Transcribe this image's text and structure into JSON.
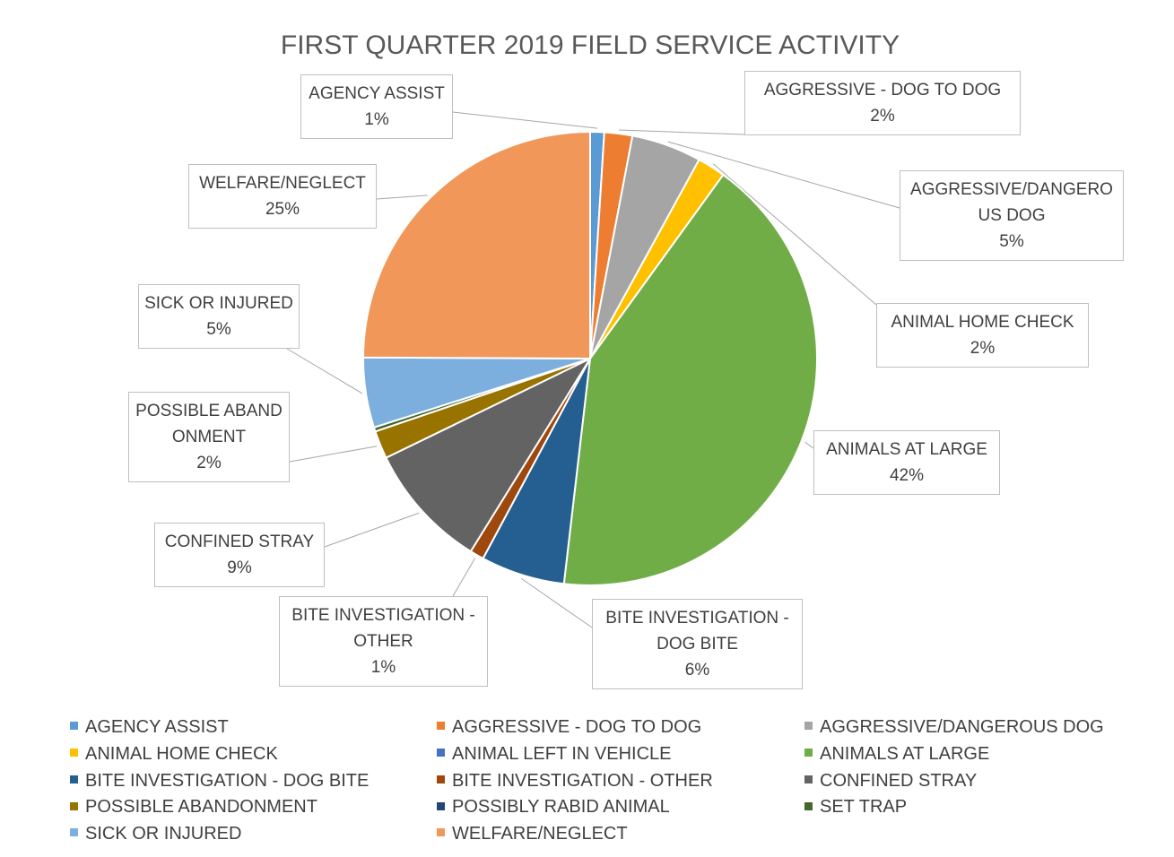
{
  "chart_data": {
    "type": "pie",
    "title": "FIRST QUARTER 2019 FIELD SERVICE ACTIVITY",
    "categories": [
      "AGENCY ASSIST",
      "AGGRESSIVE - DOG TO DOG",
      "AGGRESSIVE/DANGEROUS DOG",
      "ANIMAL HOME CHECK",
      "ANIMAL LEFT IN VEHICLE",
      "ANIMALS AT LARGE",
      "BITE INVESTIGATION - DOG BITE",
      "BITE INVESTIGATION - OTHER",
      "CONFINED STRAY",
      "POSSIBLE ABANDONMENT",
      "POSSIBLY RABID ANIMAL",
      "SET TRAP",
      "SICK OR INJURED",
      "WELFARE/NEGLECT"
    ],
    "values": [
      1,
      2,
      5,
      2,
      0,
      42,
      6,
      1,
      9,
      2,
      0,
      0.3,
      5,
      25
    ],
    "value_labels": [
      "1%",
      "2%",
      "5%",
      "2%",
      null,
      "42%",
      "6%",
      "1%",
      "9%",
      "2%",
      null,
      null,
      "5%",
      "25%"
    ],
    "colors": [
      "#5b9bd5",
      "#ed7d31",
      "#a5a5a5",
      "#ffc000",
      "#4472c4",
      "#70ad47",
      "#255e91",
      "#9e480e",
      "#636363",
      "#997300",
      "#264478",
      "#43682b",
      "#7cafdd",
      "#f1975a"
    ],
    "legend": "bottom"
  }
}
